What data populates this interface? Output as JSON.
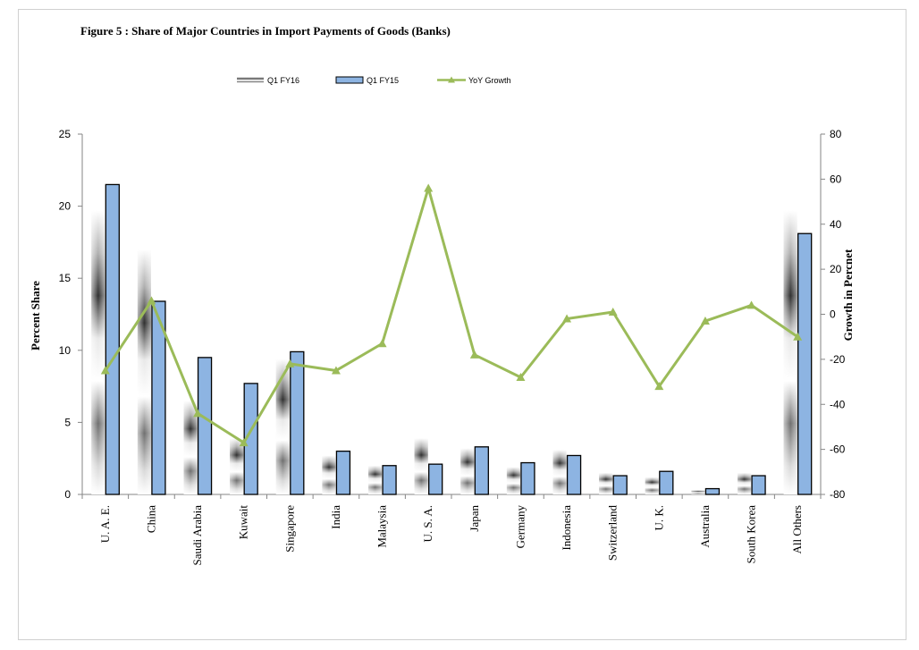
{
  "chart_data": {
    "type": "bar",
    "title": "Figure  5 :  Share of Major Countries in Import Payments of Goods (Banks)",
    "categories": [
      "U. A. E.",
      "China",
      "Saudi Arabia",
      "Kuwait",
      "Singapore",
      "India",
      "Malaysia",
      "U. S. A.",
      "Japan",
      "Germany",
      "Indonesia",
      "Switzerland",
      "U. K.",
      "Australia",
      "South Korea",
      "All Others"
    ],
    "series": [
      {
        "name": "Q1 FY16",
        "type": "bar",
        "axis": "left",
        "values": [
          19.7,
          17.0,
          6.5,
          3.9,
          9.4,
          2.7,
          2.0,
          3.9,
          3.2,
          1.9,
          3.1,
          1.5,
          1.2,
          0.3,
          1.5,
          19.7
        ]
      },
      {
        "name": "Q1 FY15",
        "type": "bar",
        "axis": "left",
        "values": [
          21.5,
          13.4,
          9.5,
          7.7,
          9.9,
          3.0,
          2.0,
          2.1,
          3.3,
          2.2,
          2.7,
          1.3,
          1.6,
          0.4,
          1.3,
          18.1
        ]
      },
      {
        "name": "YoY Growth",
        "type": "line",
        "axis": "right",
        "values": [
          -25,
          6,
          -44,
          -57,
          -22,
          -25,
          -13,
          56,
          -18,
          -28,
          -2,
          1,
          -32,
          -3,
          4,
          -10
        ]
      }
    ],
    "ylabel": "Percent Share",
    "y2label": "Growth in Percnet",
    "ylim": [
      0,
      25
    ],
    "yticks": [
      "0",
      "5",
      "10",
      "15",
      "20",
      "25"
    ],
    "y2lim": [
      -80,
      80
    ],
    "y2ticks": [
      "-80",
      "-60",
      "-40",
      "-20",
      "0",
      "20",
      "40",
      "60",
      "80"
    ],
    "legend_position": "top",
    "colors": {
      "bar_q1fy15": "#8db4e2",
      "bar_border": "#000000",
      "line": "#9bbb59"
    }
  }
}
